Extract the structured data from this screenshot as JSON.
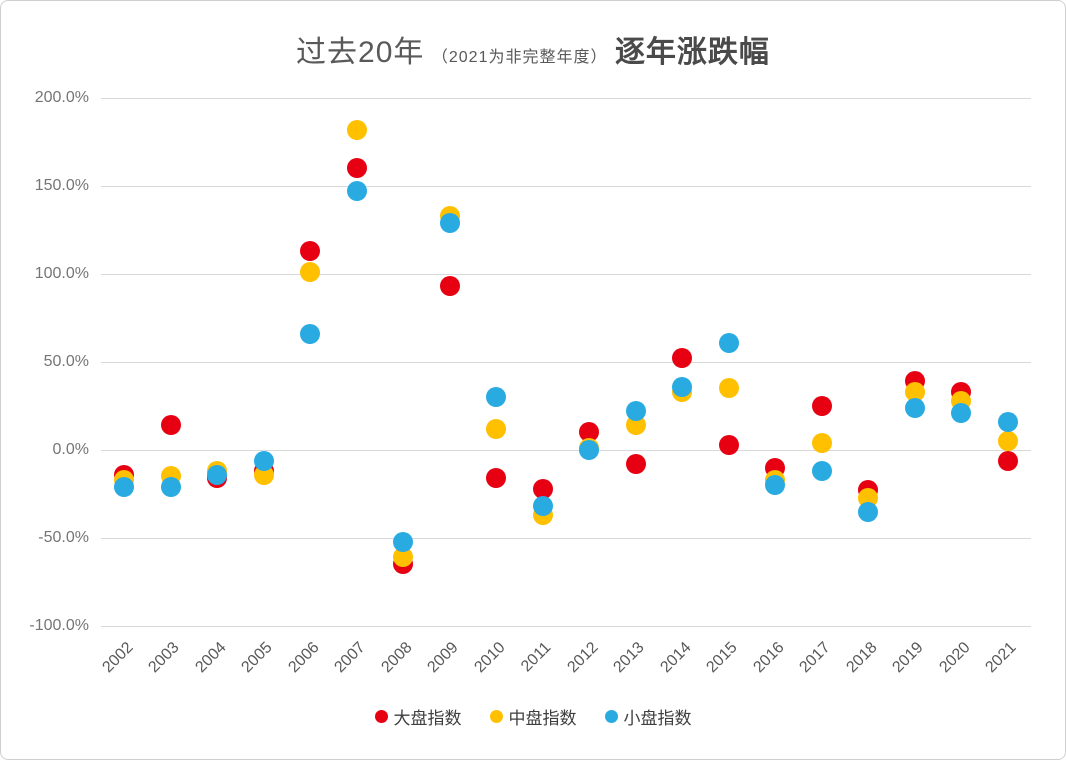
{
  "title": {
    "main": "过去20年",
    "note": "（2021为非完整年度）",
    "suffix": "逐年涨跌幅"
  },
  "chart_data": {
    "type": "scatter",
    "title": "过去20年（2021为非完整年度）逐年涨跌幅",
    "value_unit": "percent",
    "categories": [
      "2002",
      "2003",
      "2004",
      "2005",
      "2006",
      "2007",
      "2008",
      "2009",
      "2010",
      "2011",
      "2012",
      "2013",
      "2014",
      "2015",
      "2016",
      "2017",
      "2018",
      "2019",
      "2020",
      "2021"
    ],
    "series": [
      {
        "name": "大盘指数",
        "color": "#e60012",
        "values": [
          -14,
          14,
          -16,
          -12,
          113,
          160,
          -65,
          93,
          -16,
          -22,
          10,
          -8,
          52,
          3,
          -10,
          25,
          -23,
          39,
          33,
          -6
        ]
      },
      {
        "name": "中盘指数",
        "color": "#ffc000",
        "values": [
          -17,
          -15,
          -12,
          -14,
          101,
          182,
          -61,
          133,
          12,
          -37,
          1,
          14,
          33,
          35,
          -17,
          4,
          -27,
          33,
          28,
          5
        ]
      },
      {
        "name": "小盘指数",
        "color": "#29abe2",
        "values": [
          -21,
          -21,
          -14,
          -6,
          66,
          147,
          -52,
          129,
          30,
          -32,
          0,
          22,
          36,
          61,
          -20,
          -12,
          -35,
          24,
          21,
          16
        ]
      }
    ],
    "xlabel": "",
    "ylabel": "",
    "ylim": [
      -100,
      200
    ],
    "ytick_step": 50,
    "ytick_format": "one_decimal_percent",
    "grid": "horizontal",
    "legend_position": "bottom"
  }
}
